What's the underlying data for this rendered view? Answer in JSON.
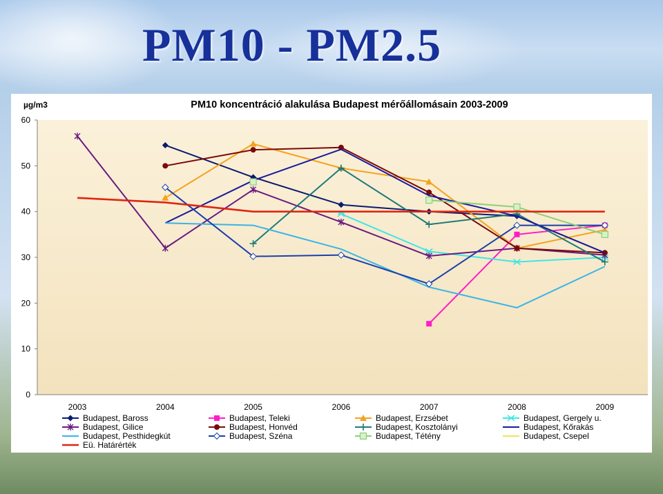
{
  "slide": {
    "title": "PM10 - PM2.5"
  },
  "chart_data": {
    "type": "line",
    "title": "PM10 koncentráció alakulása Budapest mérőállomásain 2003-2009",
    "ylabel": "µg/m3",
    "xlabel": "",
    "categories": [
      "2003",
      "2004",
      "2005",
      "2006",
      "2007",
      "2008",
      "2009"
    ],
    "ylim": [
      0,
      60
    ],
    "yticks": [
      0,
      10,
      20,
      30,
      40,
      50,
      60
    ],
    "grid": false,
    "legend_position": "bottom",
    "series": [
      {
        "name": "Budapest, Baross",
        "color": "#0b1a6e",
        "marker": "diamond-filled",
        "values": [
          null,
          54.5,
          47.5,
          41.5,
          40,
          39,
          31
        ]
      },
      {
        "name": "Budapest, Teleki",
        "color": "#ff1cc8",
        "marker": "square-filled",
        "values": [
          null,
          null,
          null,
          null,
          15.5,
          35,
          37
        ]
      },
      {
        "name": "Budapest, Erzsébet",
        "color": "#f5a21e",
        "marker": "triangle",
        "values": [
          null,
          43,
          54.8,
          49.5,
          46.5,
          32,
          36
        ]
      },
      {
        "name": "Budapest, Gergely u.",
        "color": "#3fe6e6",
        "marker": "x-star",
        "values": [
          null,
          null,
          null,
          39.5,
          31.3,
          29,
          30
        ]
      },
      {
        "name": "Budapest, Gilice",
        "color": "#6a1a7e",
        "marker": "star",
        "values": [
          56.5,
          32,
          44.8,
          37.7,
          30.3,
          32,
          30.5
        ]
      },
      {
        "name": "Budapest, Honvéd",
        "color": "#7a0a0a",
        "marker": "circle",
        "values": [
          null,
          50,
          53.5,
          54,
          44.2,
          32,
          31
        ]
      },
      {
        "name": "Budapest, Kosztolányi",
        "color": "#1c7a78",
        "marker": "plus",
        "values": [
          null,
          null,
          33,
          49.5,
          37.2,
          39.5,
          29
        ]
      },
      {
        "name": "Budapest, Kőrakás",
        "color": "#1a1a9a",
        "marker": "none",
        "values": [
          null,
          37.5,
          46.8,
          53.6,
          43.5,
          39,
          31
        ]
      },
      {
        "name": "Budapest, Pesthidegkút",
        "color": "#3ab4e6",
        "marker": "none",
        "values": [
          null,
          37.5,
          37,
          31.8,
          23.5,
          19,
          28
        ]
      },
      {
        "name": "Budapest, Széna",
        "color": "#1a3faa",
        "marker": "diamond-open",
        "values": [
          null,
          45.3,
          30.2,
          30.5,
          24.2,
          37,
          37
        ]
      },
      {
        "name": "Budapest, Tétény",
        "color": "#8ad07a",
        "marker": "square-open",
        "values": [
          null,
          null,
          46.5,
          null,
          42.5,
          41,
          35
        ]
      },
      {
        "name": "Budapest, Csepel",
        "color": "#e8e85a",
        "marker": "none",
        "values": [
          null,
          null,
          null,
          null,
          null,
          null,
          null
        ]
      },
      {
        "name": "Eü. Határérték",
        "color": "#e02510",
        "marker": "none",
        "values": [
          43,
          42,
          40,
          40,
          40,
          40,
          40
        ]
      }
    ]
  }
}
